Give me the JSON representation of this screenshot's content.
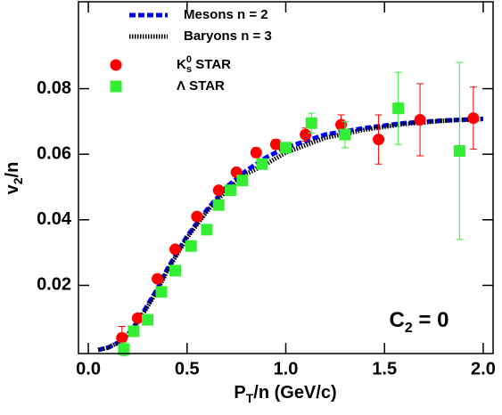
{
  "chart_data": {
    "type": "scatter",
    "xlabel": [
      "P",
      "T",
      "/n (GeV/c)"
    ],
    "ylabel": [
      "v",
      "2",
      "/n"
    ],
    "annotation": [
      "C",
      "2",
      " = 0"
    ],
    "xlim": [
      -0.05,
      2.05
    ],
    "ylim": [
      -0.0008,
      0.1065
    ],
    "xticks": [
      {
        "value": 0,
        "label": "0.0"
      },
      {
        "value": 0.5,
        "label": "0.5"
      },
      {
        "value": 1,
        "label": "1.0"
      },
      {
        "value": 1.5,
        "label": "1.5"
      },
      {
        "value": 2,
        "label": "2.0"
      }
    ],
    "yticks": [
      0.02,
      0.04,
      0.06,
      0.08
    ],
    "series": [
      {
        "name": [
          "Mesons n = 2"
        ],
        "color": "#0000ff",
        "style": "dashed",
        "x": [
          0.05,
          0.1,
          0.15,
          0.2,
          0.25,
          0.3,
          0.35,
          0.4,
          0.45,
          0.5,
          0.6,
          0.7,
          0.8,
          0.9,
          1.0,
          1.2,
          1.4,
          1.6,
          1.8,
          2.0
        ],
        "values": [
          0.0003,
          0.001,
          0.0025,
          0.005,
          0.009,
          0.014,
          0.019,
          0.025,
          0.03,
          0.035,
          0.043,
          0.05,
          0.055,
          0.059,
          0.062,
          0.066,
          0.068,
          0.0695,
          0.0703,
          0.0708
        ]
      },
      {
        "name": [
          "Baryons n = 3"
        ],
        "color": "#000000",
        "style": "dotted",
        "x": [
          0.05,
          0.1,
          0.15,
          0.2,
          0.25,
          0.3,
          0.35,
          0.4,
          0.45,
          0.5,
          0.6,
          0.7,
          0.8,
          0.9,
          1.0,
          1.2,
          1.4,
          1.6,
          1.8,
          2.0
        ],
        "values": [
          0.0003,
          0.001,
          0.0025,
          0.005,
          0.0088,
          0.0135,
          0.0185,
          0.0245,
          0.0295,
          0.0345,
          0.0425,
          0.049,
          0.054,
          0.057,
          0.0605,
          0.065,
          0.0675,
          0.0692,
          0.0702,
          0.0707
        ]
      },
      {
        "name": [
          "K",
          "0",
          "s",
          " STAR"
        ],
        "color": "#ff0000",
        "marker": "circle",
        "x": [
          0.17,
          0.25,
          0.35,
          0.44,
          0.55,
          0.66,
          0.75,
          0.85,
          0.95,
          1.1,
          1.28,
          1.47,
          1.68,
          1.95
        ],
        "values": [
          0.004,
          0.01,
          0.022,
          0.031,
          0.041,
          0.049,
          0.0545,
          0.0605,
          0.063,
          0.066,
          0.069,
          0.0645,
          0.0705,
          0.071
        ],
        "errors": [
          0.0035,
          0.001,
          0.001,
          0.001,
          0.001,
          0.001,
          0.001,
          0.0015,
          0.0015,
          0.002,
          0.003,
          0.0075,
          0.011,
          0.0095
        ]
      },
      {
        "name": [
          "Λ STAR"
        ],
        "color": "#33ee33",
        "marker": "square",
        "x": [
          0.18,
          0.23,
          0.3,
          0.37,
          0.44,
          0.52,
          0.6,
          0.66,
          0.72,
          0.78,
          0.88,
          1.0,
          1.13,
          1.3,
          1.57,
          1.88
        ],
        "values": [
          0.0005,
          0.006,
          0.0095,
          0.018,
          0.0245,
          0.032,
          0.037,
          0.0445,
          0.049,
          0.052,
          0.057,
          0.062,
          0.0695,
          0.066,
          0.074,
          0.061
        ],
        "errors": [
          0.002,
          0.001,
          0.001,
          0.001,
          0.001,
          0.001,
          0.001,
          0.001,
          0.001,
          0.001,
          0.001,
          0.0015,
          0.003,
          0.004,
          0.011,
          0.027
        ]
      }
    ]
  }
}
